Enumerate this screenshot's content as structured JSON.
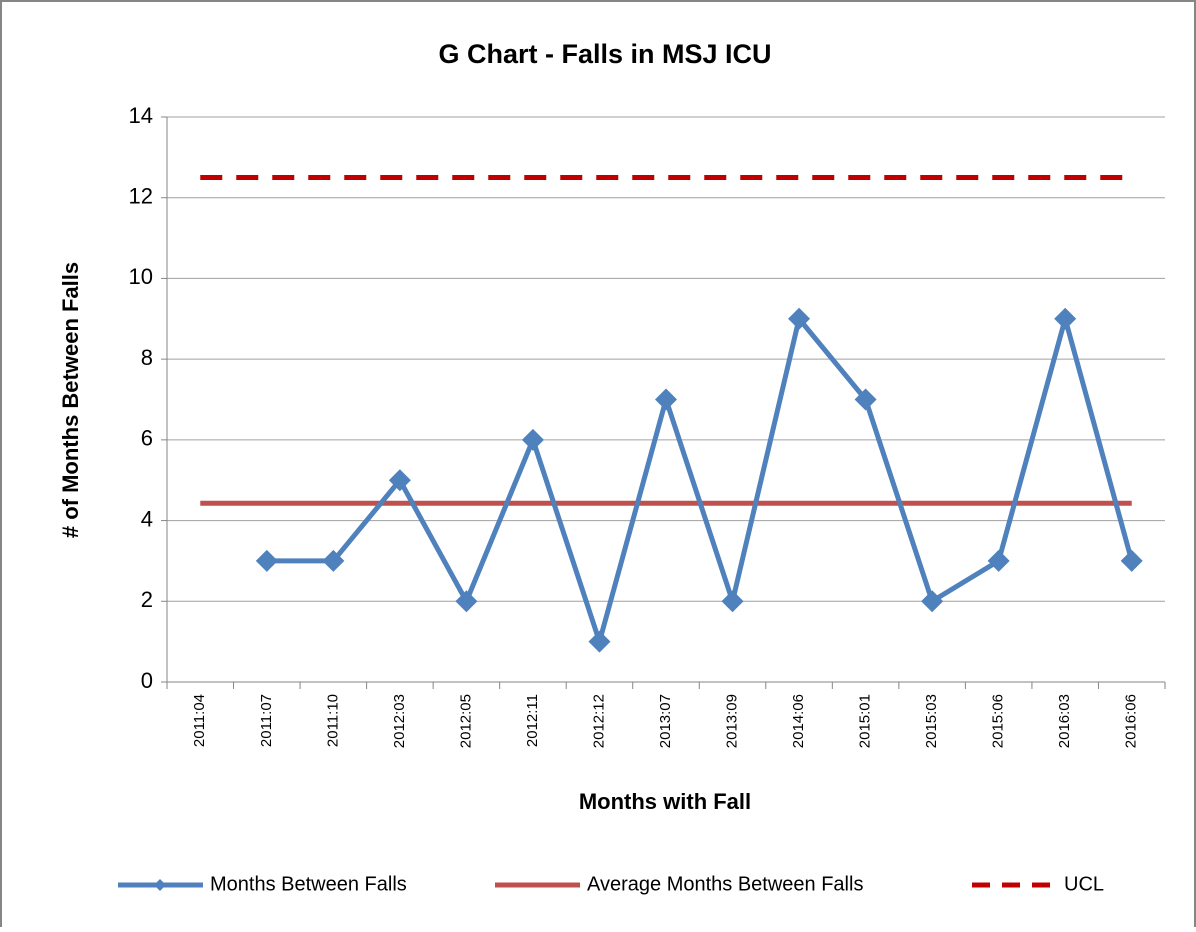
{
  "chart_data": {
    "type": "line",
    "title": "G Chart - Falls in MSJ ICU",
    "y_label": "# of Months Between Falls",
    "x_label": "Months with Fall",
    "categories": [
      "2011:04",
      "2011:07",
      "2011:10",
      "2012:03",
      "2012:05",
      "2012:11",
      "2012:12",
      "2013:07",
      "2013:09",
      "2014:06",
      "2015:01",
      "2015:03",
      "2015:06",
      "2016:03",
      "2016:06"
    ],
    "series": [
      {
        "name": "Months Between Falls",
        "color": "#4f81bd",
        "values": [
          null,
          3,
          3,
          5,
          2,
          6,
          1,
          7,
          2,
          9,
          7,
          2,
          3,
          9,
          3
        ]
      },
      {
        "name": "Average Months Between Falls",
        "color": "#c0504d",
        "values": [
          4.43,
          4.43,
          4.43,
          4.43,
          4.43,
          4.43,
          4.43,
          4.43,
          4.43,
          4.43,
          4.43,
          4.43,
          4.43,
          4.43,
          4.43
        ]
      },
      {
        "name": "UCL",
        "color": "#c00000",
        "dashed": true,
        "values": [
          12.5,
          12.5,
          12.5,
          12.5,
          12.5,
          12.5,
          12.5,
          12.5,
          12.5,
          12.5,
          12.5,
          12.5,
          12.5,
          12.5,
          12.5
        ]
      }
    ],
    "ylim": [
      0,
      14
    ],
    "yticks": [
      0,
      2,
      4,
      6,
      8,
      10,
      12,
      14
    ],
    "grid": true,
    "legend": "bottom"
  }
}
